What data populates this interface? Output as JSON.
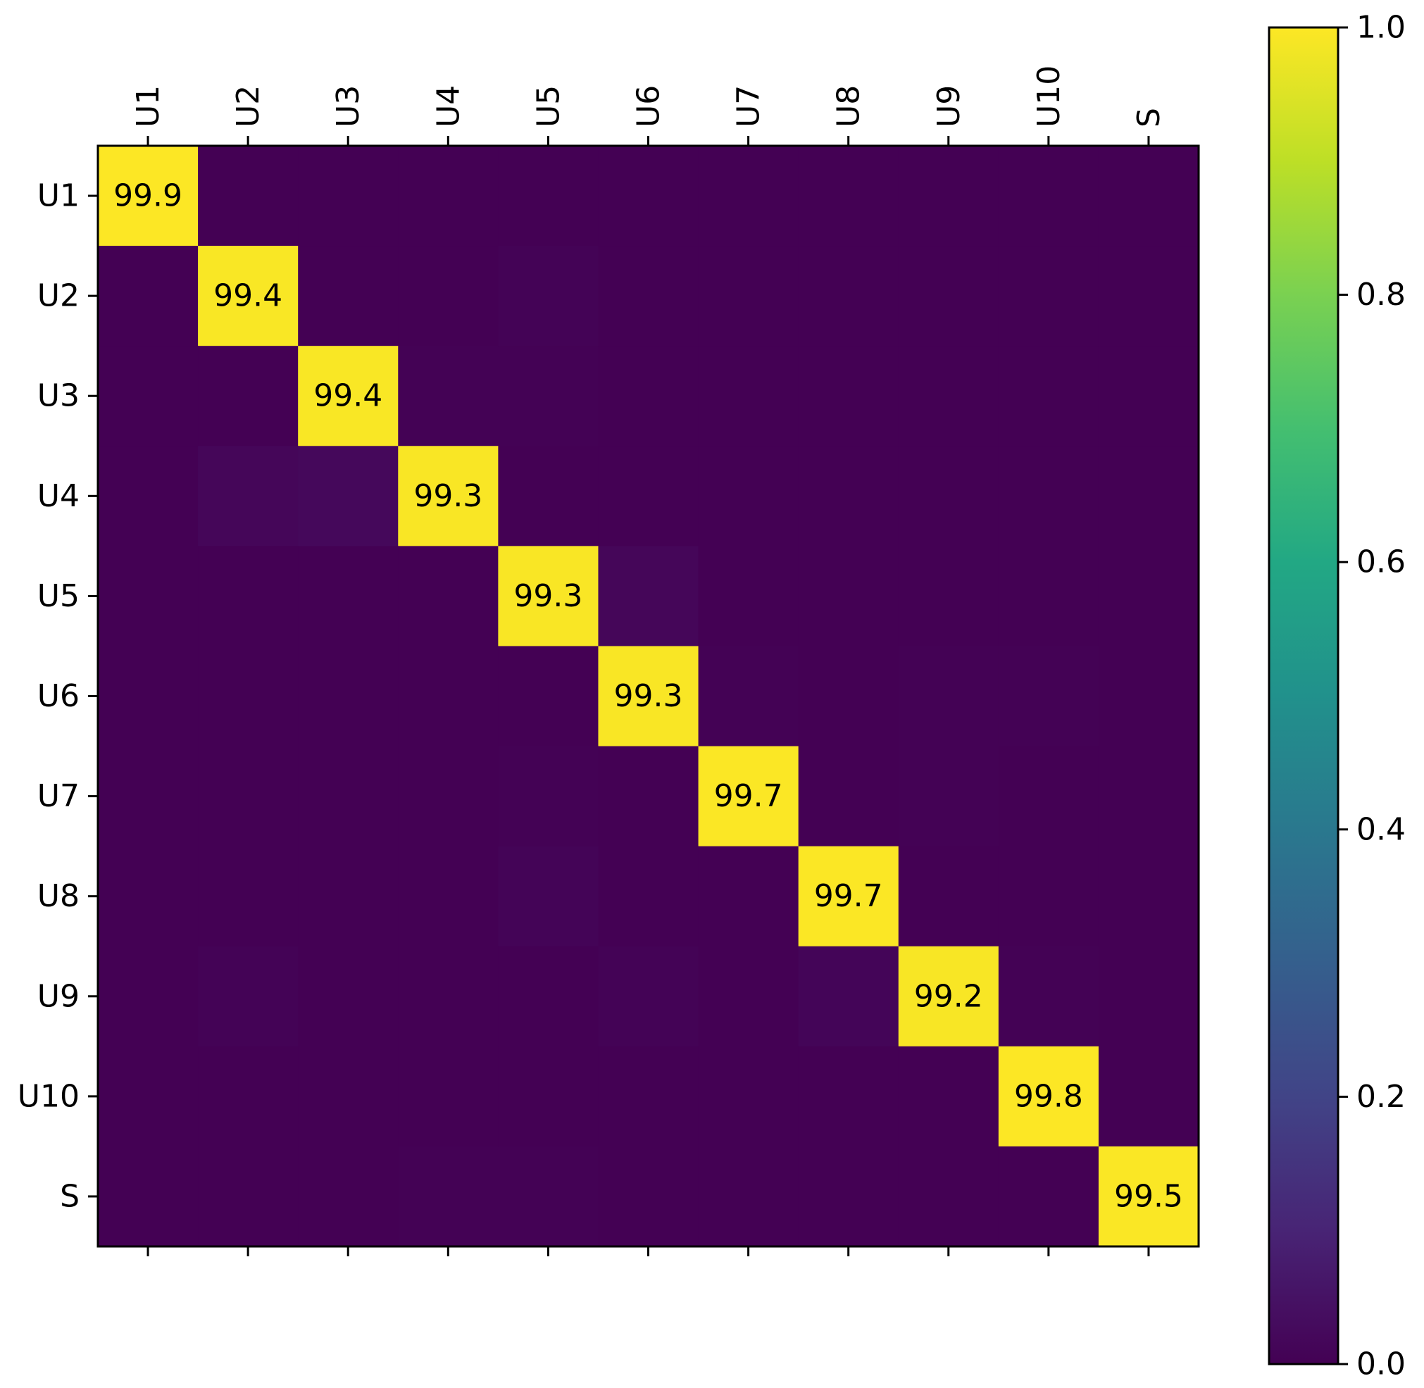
{
  "chart_data": {
    "type": "heatmap",
    "title": "",
    "xlabel": "",
    "ylabel": "",
    "x_categories": [
      "U1",
      "U2",
      "U3",
      "U4",
      "U5",
      "U6",
      "U7",
      "U8",
      "U9",
      "U10",
      "S"
    ],
    "y_categories": [
      "U1",
      "U2",
      "U3",
      "U4",
      "U5",
      "U6",
      "U7",
      "U8",
      "U9",
      "U10",
      "S"
    ],
    "values": [
      [
        0.999,
        0.0,
        0.0,
        0.0,
        0.0,
        0.0,
        0.0,
        0.0,
        0.0,
        0.0,
        0.0
      ],
      [
        0.001,
        0.994,
        0.0,
        0.0,
        0.005,
        0.0,
        0.0,
        0.0,
        0.0,
        0.0,
        0.0
      ],
      [
        0.0,
        0.0,
        0.994,
        0.003,
        0.003,
        0.0,
        0.0,
        0.0,
        0.0,
        0.0,
        0.0
      ],
      [
        0.0,
        0.015,
        0.02,
        0.993,
        0.0,
        0.0,
        0.0,
        0.0,
        0.0,
        0.0,
        0.0
      ],
      [
        0.0,
        0.0,
        0.0,
        0.0,
        0.993,
        0.015,
        0.0,
        0.0,
        0.0,
        0.0,
        0.0
      ],
      [
        0.0,
        0.0,
        0.0,
        0.0,
        0.0,
        0.993,
        0.004,
        0.0,
        0.004,
        0.004,
        0.0
      ],
      [
        0.0,
        0.0,
        0.0,
        0.0,
        0.004,
        0.0,
        0.997,
        0.0,
        0.004,
        0.0,
        0.0
      ],
      [
        0.0,
        0.0,
        0.0,
        0.0,
        0.008,
        0.0,
        0.0,
        0.997,
        0.0,
        0.0,
        0.0
      ],
      [
        0.0,
        0.006,
        0.0,
        0.0,
        0.0,
        0.006,
        0.0,
        0.012,
        0.992,
        0.002,
        0.0
      ],
      [
        0.0,
        0.0,
        0.0,
        0.0,
        0.0,
        0.0,
        0.0,
        0.0,
        0.0,
        0.998,
        0.0
      ],
      [
        0.0,
        0.0,
        0.0,
        0.002,
        0.002,
        0.0,
        0.0,
        0.0,
        0.0,
        0.0,
        0.995
      ]
    ],
    "cell_labels": [
      {
        "row": 0,
        "col": 0,
        "text": "99.9"
      },
      {
        "row": 1,
        "col": 1,
        "text": "99.4"
      },
      {
        "row": 2,
        "col": 2,
        "text": "99.4"
      },
      {
        "row": 3,
        "col": 3,
        "text": "99.3"
      },
      {
        "row": 4,
        "col": 4,
        "text": "99.3"
      },
      {
        "row": 5,
        "col": 5,
        "text": "99.3"
      },
      {
        "row": 6,
        "col": 6,
        "text": "99.7"
      },
      {
        "row": 7,
        "col": 7,
        "text": "99.7"
      },
      {
        "row": 8,
        "col": 8,
        "text": "99.2"
      },
      {
        "row": 9,
        "col": 9,
        "text": "99.8"
      },
      {
        "row": 10,
        "col": 10,
        "text": "99.5"
      }
    ],
    "x_axis_position": "top",
    "colormap": "viridis",
    "value_range": [
      0.0,
      1.0
    ],
    "grid": false,
    "colorbar": {
      "position": "right",
      "ticks": [
        "0.0",
        "0.2",
        "0.4",
        "0.6",
        "0.8",
        "1.0"
      ],
      "tick_values": [
        0.0,
        0.2,
        0.4,
        0.6,
        0.8,
        1.0
      ]
    }
  }
}
